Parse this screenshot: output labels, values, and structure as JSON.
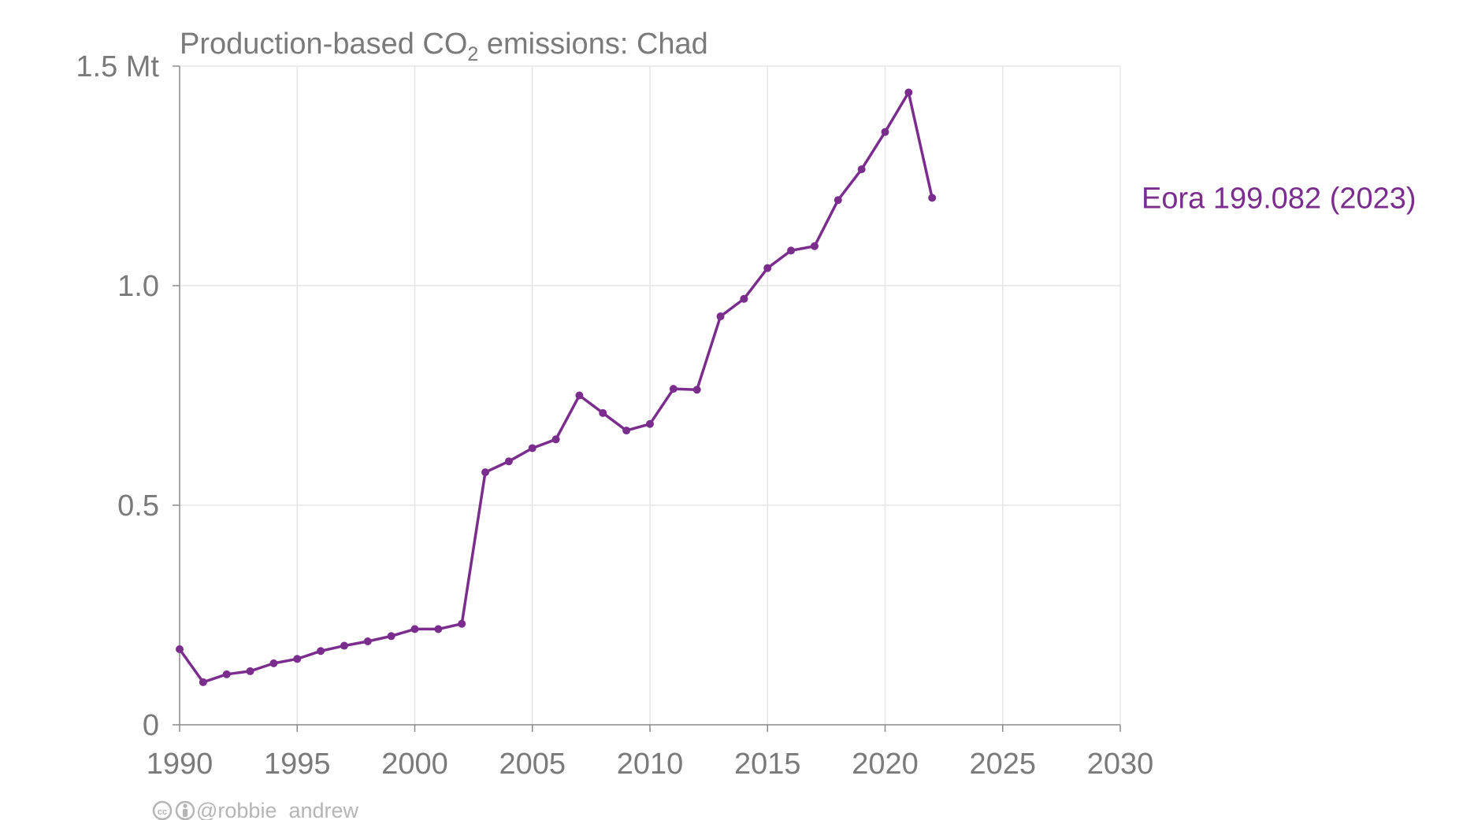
{
  "chart_data": {
    "type": "line",
    "title_main": "Production-based CO",
    "title_sub": "2",
    "title_rest": " emissions: Chad",
    "xlim": [
      1990,
      2030
    ],
    "ylim": [
      0,
      1.5
    ],
    "x_ticks": [
      1990,
      1995,
      2000,
      2005,
      2010,
      2015,
      2020,
      2025,
      2030
    ],
    "y_ticks": [
      0,
      0.5,
      1.0,
      1.5
    ],
    "y_tick_labels": [
      "0",
      "0.5",
      "1.0",
      "1.5 Mt"
    ],
    "grid": true,
    "series": [
      {
        "name": "Eora 199.082 (2023)",
        "color": "#7b2d8e",
        "x": [
          1990,
          1991,
          1992,
          1993,
          1994,
          1995,
          1996,
          1997,
          1998,
          1999,
          2000,
          2001,
          2002,
          2003,
          2004,
          2005,
          2006,
          2007,
          2008,
          2009,
          2010,
          2011,
          2012,
          2013,
          2014,
          2015,
          2016,
          2017,
          2018,
          2019,
          2020,
          2021,
          2022
        ],
        "y": [
          0.172,
          0.097,
          0.115,
          0.122,
          0.14,
          0.15,
          0.168,
          0.18,
          0.19,
          0.202,
          0.218,
          0.218,
          0.23,
          0.575,
          0.6,
          0.63,
          0.65,
          0.75,
          0.71,
          0.67,
          0.685,
          0.765,
          0.763,
          0.93,
          0.97,
          1.04,
          1.08,
          1.09,
          1.195,
          1.265,
          1.35,
          1.44,
          1.2
        ]
      }
    ]
  },
  "credit": {
    "icons": [
      "creative-commons-icon",
      "attribution-icon"
    ],
    "handle": "@robbie_andrew"
  }
}
